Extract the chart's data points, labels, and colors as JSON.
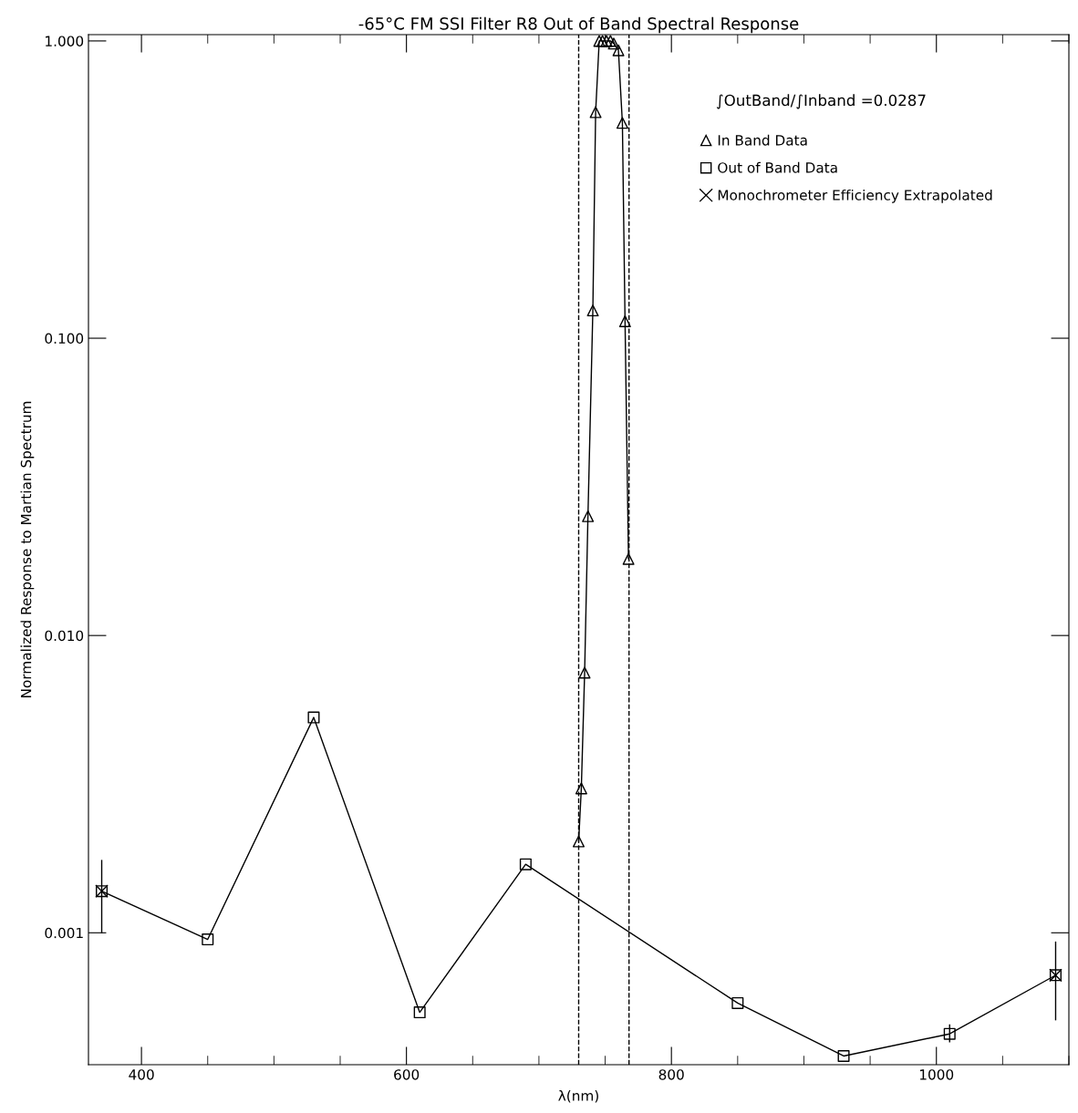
{
  "chart_data": {
    "type": "line",
    "title": "-65°C FM SSI Filter R8 Out of Band Spectral Response",
    "xlabel": "λ(nm)",
    "ylabel": "Normalized Response to Martian Spectrum",
    "annotations": [
      "∫OutBand/∫Inband =0.0287"
    ],
    "log": "y",
    "xlim": [
      360,
      1100
    ],
    "xticks": [
      400,
      600,
      800,
      1000
    ],
    "ylim": [
      0.00036,
      1.05
    ],
    "yticks": [
      {
        "value": 0.001,
        "label": "0.001"
      },
      {
        "value": 0.01,
        "label": "0.010"
      },
      {
        "value": 0.1,
        "label": "0.100"
      },
      {
        "value": 1,
        "label": "1.000"
      }
    ],
    "grid": false,
    "legend": "top right",
    "series": [
      {
        "name": "In Band Data",
        "marker": "triangle",
        "color": "#000000",
        "x": [
          730,
          732,
          734.5,
          737,
          740.7,
          742.8,
          745.5,
          748,
          751,
          754,
          756.5,
          760,
          763,
          765,
          767.6
        ],
        "values": [
          0.00203,
          0.00306,
          0.0075,
          0.0252,
          0.124,
          0.576,
          1.0,
          1.0,
          1.0,
          1.0,
          0.98,
          0.93,
          0.53,
          0.114,
          0.0181
        ]
      },
      {
        "name": "Out of Band Data",
        "marker": "square",
        "color": "#000000",
        "x": [
          370,
          450,
          530,
          610,
          690,
          850,
          930,
          1010,
          1090
        ],
        "values": [
          0.00138,
          0.00095,
          0.0053,
          0.00054,
          0.0017,
          0.00058,
          0.000385,
          0.000457,
          0.00072
        ],
        "errors": [
          [
            0.001,
            0.00175
          ],
          null,
          null,
          null,
          null,
          null,
          null,
          [
            0.00043,
            0.00049
          ],
          [
            0.00051,
            0.00093
          ]
        ]
      },
      {
        "name": "Monochrometer Efficiency Extrapolated",
        "type": "scatter",
        "marker": "cross",
        "color": "#000000",
        "x": [
          370,
          1090
        ],
        "values": [
          0.00138,
          0.00072
        ]
      }
    ],
    "ref_lines": [
      {
        "axis": "x",
        "value": 730,
        "line_style": "dashed",
        "color": "#000000"
      },
      {
        "axis": "x",
        "value": 768,
        "line_style": "dashed",
        "color": "#000000"
      }
    ]
  }
}
